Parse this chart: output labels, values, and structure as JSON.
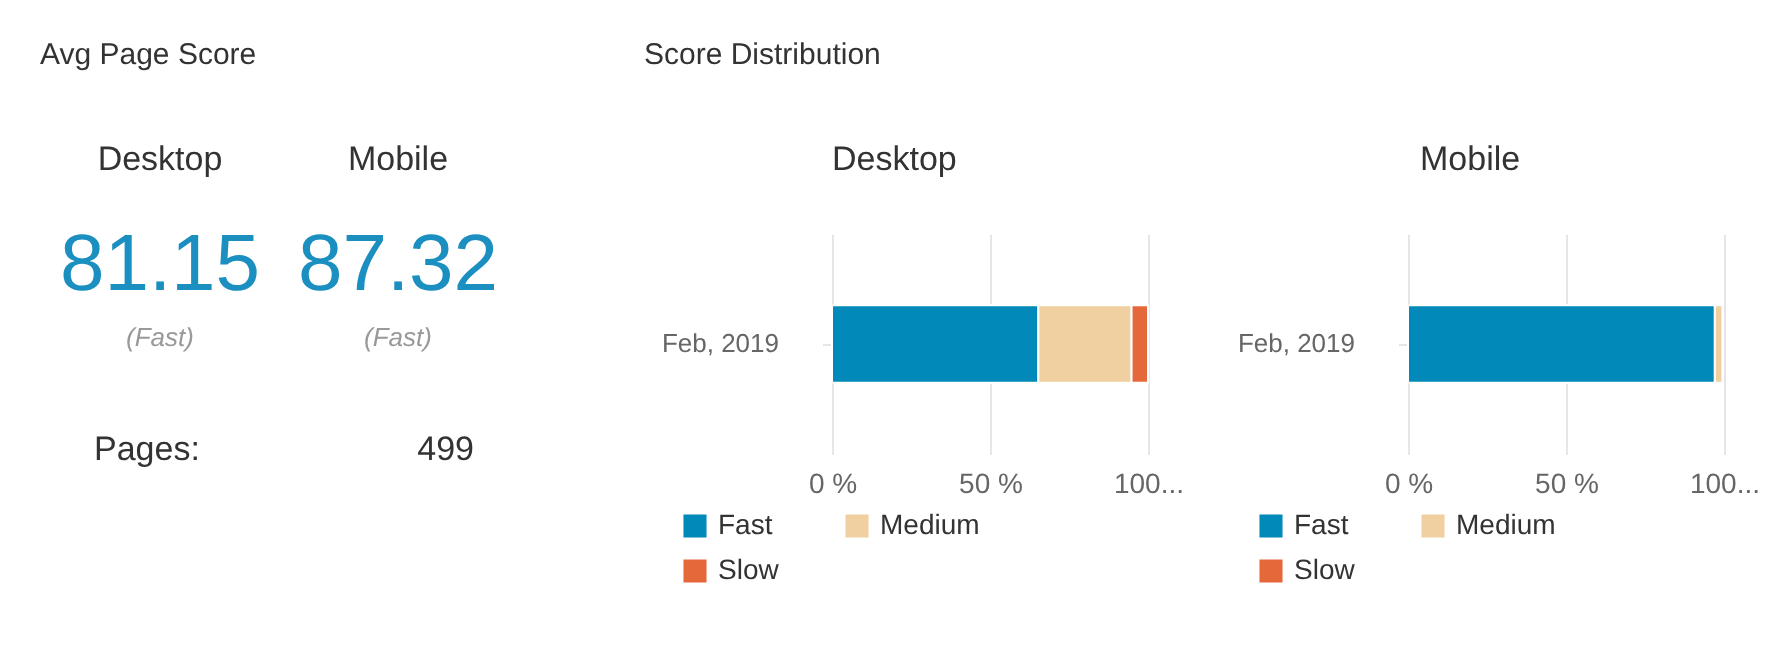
{
  "chart_data": [
    {
      "type": "other",
      "title": "Avg Page Score",
      "categories": [
        "Desktop",
        "Mobile"
      ],
      "values": [
        81.15,
        87.32
      ],
      "data_labels": true,
      "color": "#1a8fc0",
      "annotations": [
        "(Fast)",
        "(Fast)",
        "Pages:",
        "499"
      ]
    },
    {
      "type": "bar",
      "title": "Desktop",
      "annotations": [
        "Score Distribution"
      ],
      "orientation": "horizontal",
      "stacked": true,
      "categories": [
        "Feb, 2019"
      ],
      "series": [
        {
          "name": "Fast",
          "color": "#0089b9",
          "values": [
            65.3
          ]
        },
        {
          "name": "Medium",
          "color": "#f0cfa0",
          "values": [
            29.5
          ]
        },
        {
          "name": "Slow",
          "color": "#e5683b",
          "values": [
            5.2
          ]
        }
      ],
      "xlim": [
        0,
        100
      ],
      "xticks": [
        {
          "value": 0,
          "label": "0 %"
        },
        {
          "value": 50,
          "label": "50 %"
        },
        {
          "value": 100,
          "label": "100..."
        }
      ],
      "grid": "x",
      "legend": "bottom"
    },
    {
      "type": "bar",
      "title": "Mobile",
      "orientation": "horizontal",
      "stacked": true,
      "categories": [
        "Feb, 2019"
      ],
      "series": [
        {
          "name": "Fast",
          "color": "#0089b9",
          "values": [
            97.1
          ]
        },
        {
          "name": "Medium",
          "color": "#f0cfa0",
          "values": [
            2.4
          ]
        },
        {
          "name": "Slow",
          "color": "#e5683b",
          "values": [
            null
          ]
        }
      ],
      "xlim": [
        0,
        100
      ],
      "xticks": [
        {
          "value": 0,
          "label": "0 %"
        },
        {
          "value": 50,
          "label": "50 %"
        },
        {
          "value": 100,
          "label": "100..."
        }
      ],
      "grid": "x",
      "legend": "bottom"
    }
  ]
}
